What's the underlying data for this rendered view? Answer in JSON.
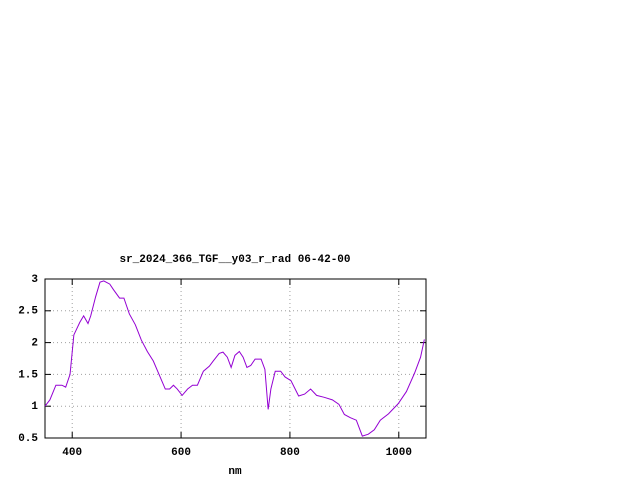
{
  "chart_data": {
    "type": "line",
    "title": "sr_2024_366_TGF__y03_r_rad 06-42-00",
    "x_label": "nm",
    "xlim": [
      350,
      1050
    ],
    "ylim": [
      0.5,
      3
    ],
    "xticks": [
      400,
      600,
      800,
      1000
    ],
    "yticks": [
      0.5,
      1,
      1.5,
      2,
      2.5,
      3
    ],
    "grid": true,
    "series": [
      {
        "color": "#9400d3",
        "x": [
          350,
          359,
          370,
          381,
          388,
          396,
          403,
          414,
          421,
          429,
          434,
          443,
          451,
          458,
          469,
          476,
          487,
          495,
          505,
          516,
          527,
          538,
          549,
          557,
          571,
          579,
          586,
          593,
          602,
          612,
          621,
          630,
          641,
          652,
          659,
          670,
          677,
          685,
          692,
          699,
          707,
          714,
          721,
          728,
          736,
          747,
          754,
          760,
          765,
          773,
          783,
          791,
          802,
          816,
          827,
          838,
          849,
          863,
          878,
          890,
          900,
          911,
          922,
          933,
          944,
          955,
          966,
          981,
          999,
          1014,
          1029,
          1040,
          1047
        ],
        "values": [
          1.0,
          1.1,
          1.33,
          1.33,
          1.3,
          1.5,
          2.12,
          2.32,
          2.42,
          2.3,
          2.42,
          2.72,
          2.95,
          2.97,
          2.92,
          2.83,
          2.7,
          2.7,
          2.45,
          2.28,
          2.04,
          1.86,
          1.71,
          1.55,
          1.27,
          1.27,
          1.33,
          1.27,
          1.17,
          1.27,
          1.33,
          1.33,
          1.55,
          1.63,
          1.71,
          1.83,
          1.85,
          1.77,
          1.61,
          1.8,
          1.86,
          1.77,
          1.61,
          1.64,
          1.74,
          1.74,
          1.58,
          0.95,
          1.27,
          1.55,
          1.55,
          1.46,
          1.4,
          1.16,
          1.19,
          1.27,
          1.17,
          1.14,
          1.1,
          1.03,
          0.87,
          0.82,
          0.78,
          0.53,
          0.56,
          0.63,
          0.78,
          0.88,
          1.04,
          1.23,
          1.52,
          1.77,
          2.05
        ]
      }
    ]
  }
}
